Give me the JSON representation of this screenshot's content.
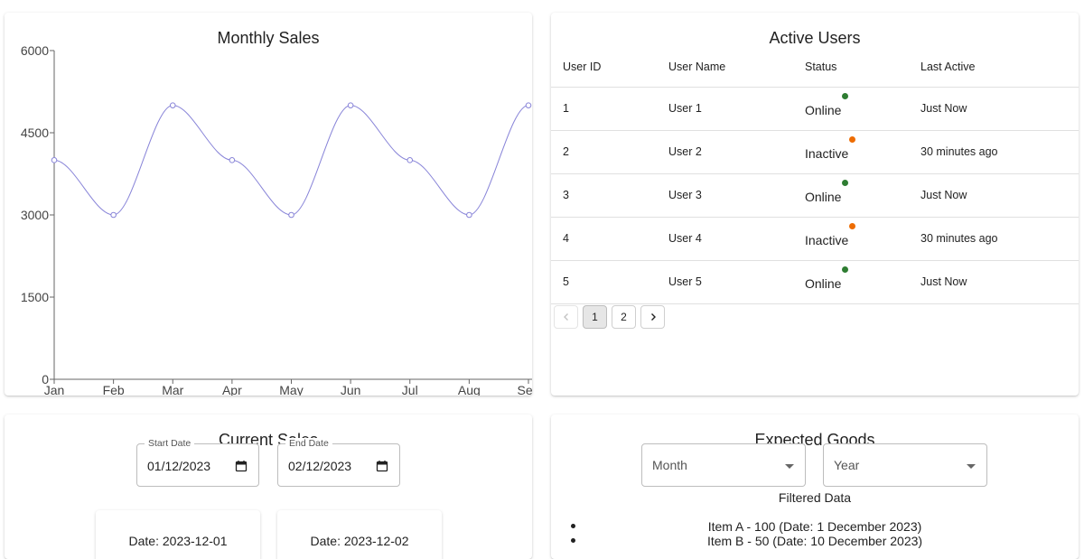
{
  "sales_card": {
    "title": "Monthly Sales"
  },
  "chart_data": {
    "type": "line",
    "title": "Monthly Sales",
    "categories": [
      "Jan",
      "Feb",
      "Mar",
      "Apr",
      "May",
      "Jun",
      "Jul",
      "Aug",
      "Sep"
    ],
    "series": [
      {
        "values": [
          4000,
          3000,
          5000,
          4000,
          3000,
          5000,
          4000,
          3000,
          5000
        ]
      }
    ],
    "ylim": [
      0,
      6000
    ],
    "yticks": [
      "0",
      "1500",
      "3000",
      "4500",
      "6000"
    ],
    "xlabel": "",
    "ylabel": "",
    "grid": false,
    "line_color": "#8884d8",
    "curve": "smooth"
  },
  "users_card": {
    "title": "Active Users",
    "columns": [
      "User ID",
      "User Name",
      "Status",
      "Last Active"
    ],
    "rows": [
      {
        "id": "1",
        "name": "User 1",
        "status": "Online",
        "last_active": "Just Now"
      },
      {
        "id": "2",
        "name": "User 2",
        "status": "Inactive",
        "last_active": "30 minutes ago"
      },
      {
        "id": "3",
        "name": "User 3",
        "status": "Online",
        "last_active": "Just Now"
      },
      {
        "id": "4",
        "name": "User 4",
        "status": "Inactive",
        "last_active": "30 minutes ago"
      },
      {
        "id": "5",
        "name": "User 5",
        "status": "Online",
        "last_active": "Just Now"
      }
    ],
    "status_colors": {
      "Online": "#2e7d32",
      "Inactive": "#ed6c02"
    },
    "pagination": {
      "prev_icon": "chevron-left-icon",
      "pages": [
        "1",
        "2"
      ],
      "current": "1",
      "next_icon": "chevron-right-icon"
    }
  },
  "current_card": {
    "title": "Current Sales",
    "start_date": {
      "label": "Start Date",
      "value": "01/12/2023"
    },
    "end_date": {
      "label": "End Date",
      "value": "02/12/2023"
    },
    "entries": [
      "Date: 2023-12-01",
      "Date: 2023-12-02"
    ]
  },
  "goods_card": {
    "title": "Expected Goods",
    "month_select": {
      "label": "Month"
    },
    "year_select": {
      "label": "Year"
    },
    "filtered_title": "Filtered Data",
    "items": [
      "Item A - 100 (Date: 1 December 2023)",
      "Item B - 50 (Date: 10 December 2023)"
    ]
  }
}
